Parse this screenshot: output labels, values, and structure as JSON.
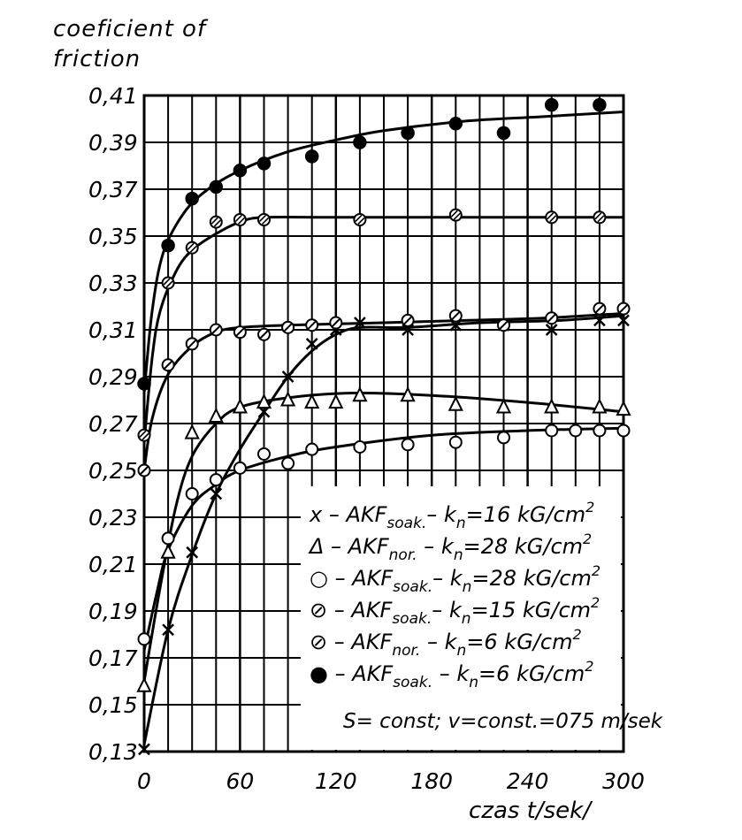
{
  "chart_data": {
    "type": "scatter",
    "ylabel_line1": "coeficient of",
    "ylabel_line2": "friction",
    "xlabel": "czas t/sek/",
    "xlim": [
      0,
      300
    ],
    "ylim": [
      0.13,
      0.41
    ],
    "x_ticks": [
      0,
      60,
      120,
      180,
      240,
      300
    ],
    "x_tick_labels": [
      "0",
      "60",
      "120",
      "180",
      "240",
      "300"
    ],
    "y_ticks": [
      0.13,
      0.15,
      0.17,
      0.19,
      0.21,
      0.23,
      0.25,
      0.27,
      0.29,
      0.31,
      0.33,
      0.35,
      0.37,
      0.39,
      0.41
    ],
    "y_tick_labels": [
      "0,13",
      "0,15",
      "0,17",
      "0,19",
      "0,21",
      "0,23",
      "0,25",
      "0,27",
      "0,29",
      "0,31",
      "0,33",
      "0,35",
      "0,37",
      "0,39",
      "0,41"
    ],
    "grid": true,
    "legend_position": "bottom-right",
    "note": "S= const; v=const.=075 m/sek",
    "series": [
      {
        "marker": "x",
        "legend": {
          "pre": "x – AKF",
          "sub": "soak.",
          "mid": "– k",
          "nsub": "n",
          "post": "=16 kG/cm",
          "sup": "2"
        },
        "points": [
          [
            0,
            0.131
          ],
          [
            15,
            0.182
          ],
          [
            30,
            0.215
          ],
          [
            45,
            0.24
          ],
          [
            75,
            0.275
          ],
          [
            90,
            0.29
          ],
          [
            105,
            0.304
          ],
          [
            120,
            0.31
          ],
          [
            135,
            0.313
          ],
          [
            165,
            0.31
          ],
          [
            195,
            0.312
          ],
          [
            225,
            0.312
          ],
          [
            255,
            0.31
          ],
          [
            285,
            0.314
          ],
          [
            300,
            0.314
          ]
        ],
        "curve": [
          [
            0,
            0.133
          ],
          [
            15,
            0.182
          ],
          [
            30,
            0.214
          ],
          [
            45,
            0.24
          ],
          [
            60,
            0.259
          ],
          [
            75,
            0.275
          ],
          [
            90,
            0.29
          ],
          [
            105,
            0.301
          ],
          [
            120,
            0.308
          ],
          [
            135,
            0.311
          ],
          [
            165,
            0.311
          ],
          [
            210,
            0.313
          ],
          [
            260,
            0.314
          ],
          [
            300,
            0.316
          ]
        ]
      },
      {
        "marker": "triangle",
        "legend": {
          "pre": "Δ – AKF",
          "sub": "nor.",
          "mid": " – k",
          "nsub": "n",
          "post": "=28 kG/cm",
          "sup": "2"
        },
        "points": [
          [
            0,
            0.158
          ],
          [
            15,
            0.215
          ],
          [
            30,
            0.266
          ],
          [
            45,
            0.273
          ],
          [
            60,
            0.277
          ],
          [
            75,
            0.279
          ],
          [
            90,
            0.28
          ],
          [
            105,
            0.279
          ],
          [
            120,
            0.279
          ],
          [
            135,
            0.282
          ],
          [
            165,
            0.282
          ],
          [
            195,
            0.278
          ],
          [
            225,
            0.277
          ],
          [
            255,
            0.277
          ],
          [
            285,
            0.277
          ],
          [
            300,
            0.276
          ]
        ],
        "curve": [
          [
            0,
            0.16
          ],
          [
            10,
            0.2
          ],
          [
            20,
            0.235
          ],
          [
            30,
            0.256
          ],
          [
            45,
            0.27
          ],
          [
            60,
            0.277
          ],
          [
            90,
            0.281
          ],
          [
            130,
            0.283
          ],
          [
            180,
            0.282
          ],
          [
            240,
            0.279
          ],
          [
            300,
            0.275
          ]
        ]
      },
      {
        "marker": "circle",
        "legend": {
          "pre": "○ – AKF",
          "sub": "soak.",
          "mid": "– k",
          "nsub": "n",
          "post": "=28 kG/cm",
          "sup": "2"
        },
        "points": [
          [
            0,
            0.178
          ],
          [
            15,
            0.221
          ],
          [
            30,
            0.24
          ],
          [
            45,
            0.246
          ],
          [
            60,
            0.251
          ],
          [
            75,
            0.257
          ],
          [
            90,
            0.253
          ],
          [
            105,
            0.259
          ],
          [
            135,
            0.26
          ],
          [
            165,
            0.261
          ],
          [
            195,
            0.262
          ],
          [
            225,
            0.264
          ],
          [
            255,
            0.267
          ],
          [
            270,
            0.267
          ],
          [
            285,
            0.267
          ],
          [
            300,
            0.267
          ]
        ],
        "curve": [
          [
            0,
            0.173
          ],
          [
            8,
            0.198
          ],
          [
            15,
            0.216
          ],
          [
            30,
            0.235
          ],
          [
            45,
            0.244
          ],
          [
            60,
            0.25
          ],
          [
            90,
            0.256
          ],
          [
            120,
            0.26
          ],
          [
            180,
            0.265
          ],
          [
            240,
            0.267
          ],
          [
            300,
            0.268
          ]
        ]
      },
      {
        "marker": "circle-slash",
        "legend": {
          "pre": "⊘ – AKF",
          "sub": "soak.",
          "mid": "– k",
          "nsub": "n",
          "post": "=15 kG/cm",
          "sup": "2"
        },
        "points": [
          [
            0,
            0.25
          ],
          [
            15,
            0.295
          ],
          [
            30,
            0.304
          ],
          [
            45,
            0.31
          ],
          [
            60,
            0.309
          ],
          [
            75,
            0.308
          ],
          [
            90,
            0.311
          ],
          [
            105,
            0.312
          ],
          [
            120,
            0.313
          ],
          [
            165,
            0.314
          ],
          [
            195,
            0.316
          ],
          [
            225,
            0.312
          ],
          [
            255,
            0.315
          ],
          [
            285,
            0.319
          ],
          [
            300,
            0.319
          ]
        ],
        "curve": [
          [
            0,
            0.25
          ],
          [
            5,
            0.272
          ],
          [
            15,
            0.291
          ],
          [
            30,
            0.303
          ],
          [
            45,
            0.309
          ],
          [
            60,
            0.311
          ],
          [
            90,
            0.312
          ],
          [
            150,
            0.313
          ],
          [
            200,
            0.314
          ],
          [
            250,
            0.315
          ],
          [
            300,
            0.317
          ]
        ]
      },
      {
        "marker": "circle-hatch",
        "legend": {
          "pre": "⊘ – AKF",
          "sub": "nor.",
          "mid": " – k",
          "nsub": "n",
          "post": "=6 kG/cm",
          "sup": "2"
        },
        "points": [
          [
            0,
            0.265
          ],
          [
            15,
            0.33
          ],
          [
            30,
            0.345
          ],
          [
            45,
            0.356
          ],
          [
            60,
            0.357
          ],
          [
            75,
            0.357
          ],
          [
            135,
            0.357
          ],
          [
            195,
            0.359
          ],
          [
            255,
            0.358
          ],
          [
            285,
            0.358
          ]
        ],
        "curve": [
          [
            0,
            0.262
          ],
          [
            5,
            0.298
          ],
          [
            10,
            0.318
          ],
          [
            20,
            0.335
          ],
          [
            30,
            0.344
          ],
          [
            45,
            0.351
          ],
          [
            60,
            0.356
          ],
          [
            75,
            0.358
          ],
          [
            120,
            0.358
          ],
          [
            200,
            0.358
          ],
          [
            300,
            0.358
          ]
        ]
      },
      {
        "marker": "circle-filled",
        "legend": {
          "pre": "● – AKF",
          "sub": "soak.",
          "mid": " – k",
          "nsub": "n",
          "post": "=6 kG/cm",
          "sup": "2"
        },
        "points": [
          [
            0,
            0.287
          ],
          [
            15,
            0.346
          ],
          [
            30,
            0.366
          ],
          [
            45,
            0.371
          ],
          [
            60,
            0.378
          ],
          [
            75,
            0.381
          ],
          [
            105,
            0.384
          ],
          [
            135,
            0.39
          ],
          [
            165,
            0.394
          ],
          [
            195,
            0.398
          ],
          [
            225,
            0.394
          ],
          [
            255,
            0.406
          ],
          [
            285,
            0.406
          ]
        ],
        "curve": [
          [
            0,
            0.283
          ],
          [
            5,
            0.318
          ],
          [
            12,
            0.343
          ],
          [
            25,
            0.36
          ],
          [
            40,
            0.37
          ],
          [
            60,
            0.378
          ],
          [
            90,
            0.386
          ],
          [
            120,
            0.391
          ],
          [
            150,
            0.395
          ],
          [
            200,
            0.399
          ],
          [
            250,
            0.401
          ],
          [
            300,
            0.403
          ]
        ]
      }
    ]
  }
}
